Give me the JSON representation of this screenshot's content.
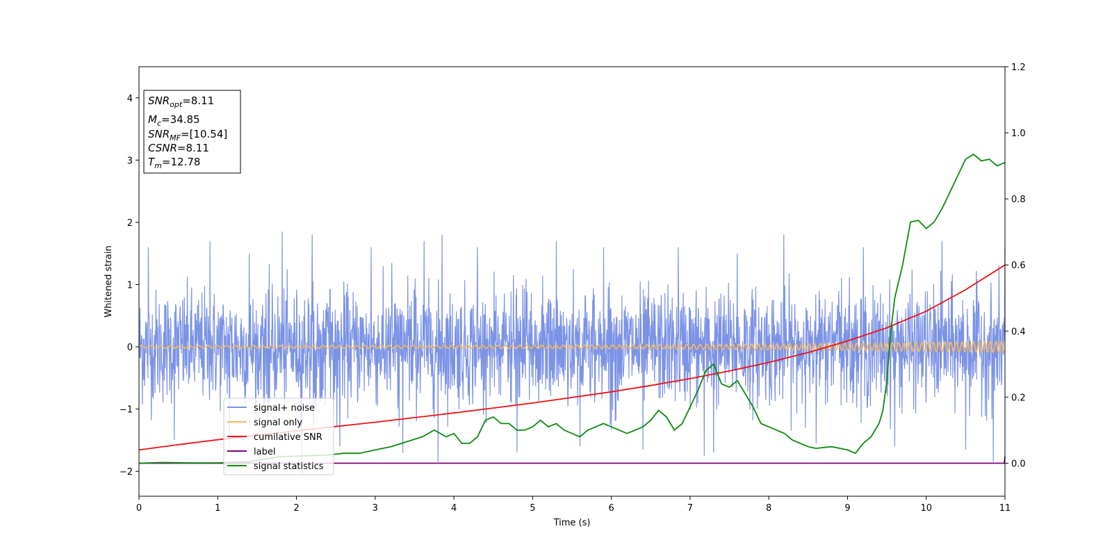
{
  "chart_data": {
    "type": "line",
    "xlabel": "Time (s)",
    "ylabel": "Whitened strain",
    "xlim": [
      0,
      11
    ],
    "ylim": [
      -2.4,
      4.5
    ],
    "y2lim": [
      -0.1,
      1.2
    ],
    "xticks": [
      "0",
      "1",
      "2",
      "3",
      "4",
      "5",
      "6",
      "7",
      "8",
      "9",
      "10",
      "11"
    ],
    "yticks": [
      "−2",
      "−1",
      "0",
      "1",
      "2",
      "3",
      "4"
    ],
    "y2ticks": [
      "0.0",
      "0.2",
      "0.4",
      "0.6",
      "0.8",
      "1.0",
      "1.2"
    ],
    "legend_position": "lower-left",
    "info_box": {
      "position": "top-left",
      "lines": [
        {
          "main": "SNR",
          "sub": "opt",
          "value": "=8.11"
        },
        {
          "main": "M",
          "sub": "c",
          "value": "=34.85"
        },
        {
          "main": "SNR",
          "sub": "MF",
          "value": "=[10.54]"
        },
        {
          "main": "CSNR",
          "sub": "",
          "value": "=8.11"
        },
        {
          "main": "T",
          "sub": "m",
          "value": "=12.78"
        }
      ]
    },
    "series": [
      {
        "name": "signal+ noise",
        "color": "#7b93e6",
        "axis": "left",
        "kind": "noise",
        "noise_sigma": 0.45,
        "spikes": [
          [
            0.12,
            1.6
          ],
          [
            0.45,
            -1.5
          ],
          [
            0.9,
            1.7
          ],
          [
            1.15,
            -1.6
          ],
          [
            1.4,
            1.5
          ],
          [
            1.82,
            1.85
          ],
          [
            2.07,
            -2.05
          ],
          [
            2.2,
            1.8
          ],
          [
            2.55,
            -1.6
          ],
          [
            2.95,
            1.6
          ],
          [
            3.35,
            -1.7
          ],
          [
            3.62,
            1.7
          ],
          [
            3.8,
            -1.85
          ],
          [
            3.85,
            1.8
          ],
          [
            4.3,
            1.6
          ],
          [
            4.8,
            -1.7
          ],
          [
            5.3,
            1.7
          ],
          [
            5.6,
            -1.6
          ],
          [
            5.9,
            1.6
          ],
          [
            6.4,
            -1.65
          ],
          [
            6.85,
            1.6
          ],
          [
            7.18,
            -1.75
          ],
          [
            7.3,
            -1.7
          ],
          [
            7.6,
            1.5
          ],
          [
            8.19,
            1.8
          ],
          [
            8.6,
            -1.55
          ],
          [
            9.2,
            1.6
          ],
          [
            9.6,
            -1.6
          ],
          [
            10.2,
            1.7
          ],
          [
            10.5,
            -1.65
          ],
          [
            10.85,
            -1.85
          ],
          [
            11.0,
            1.6
          ]
        ]
      },
      {
        "name": "signal only",
        "color": "#f5b762",
        "axis": "left",
        "kind": "chirp",
        "amplitude_start": 0.02,
        "amplitude_end": 0.09
      },
      {
        "name": "cumilative SNR",
        "color": "#ee1111",
        "axis": "right",
        "x": [
          0,
          0.5,
          1,
          1.5,
          2,
          2.5,
          3,
          3.5,
          4,
          4.5,
          5,
          5.5,
          6,
          6.5,
          7,
          7.5,
          8,
          8.5,
          9,
          9.5,
          10,
          10.5,
          11
        ],
        "y": [
          0.04,
          0.056,
          0.071,
          0.085,
          0.098,
          0.111,
          0.124,
          0.138,
          0.152,
          0.167,
          0.182,
          0.199,
          0.216,
          0.235,
          0.256,
          0.279,
          0.305,
          0.335,
          0.37,
          0.41,
          0.46,
          0.525,
          0.6
        ]
      },
      {
        "name": "label",
        "color": "#800080",
        "axis": "right",
        "x": [
          0,
          10.99,
          11
        ],
        "y": [
          0,
          0,
          0.02
        ]
      },
      {
        "name": "signal statistics",
        "color": "#0a8a0a",
        "axis": "right",
        "x": [
          0,
          0.3,
          0.6,
          1.0,
          1.4,
          1.8,
          2.1,
          2.4,
          2.6,
          2.8,
          3.0,
          3.2,
          3.4,
          3.6,
          3.75,
          3.9,
          4.0,
          4.1,
          4.2,
          4.3,
          4.4,
          4.5,
          4.6,
          4.7,
          4.8,
          4.9,
          5.0,
          5.1,
          5.2,
          5.3,
          5.4,
          5.5,
          5.6,
          5.7,
          5.8,
          5.9,
          6.0,
          6.1,
          6.2,
          6.3,
          6.4,
          6.5,
          6.6,
          6.7,
          6.8,
          6.9,
          7.0,
          7.1,
          7.2,
          7.3,
          7.4,
          7.5,
          7.6,
          7.7,
          7.8,
          7.9,
          8.0,
          8.1,
          8.2,
          8.3,
          8.4,
          8.5,
          8.6,
          8.8,
          9.0,
          9.1,
          9.2,
          9.3,
          9.4,
          9.45,
          9.5,
          9.55,
          9.6,
          9.7,
          9.8,
          9.9,
          10.0,
          10.1,
          10.2,
          10.3,
          10.4,
          10.5,
          10.6,
          10.7,
          10.8,
          10.9,
          11.0
        ],
        "y": [
          0.0,
          0.002,
          0.001,
          0.001,
          0.005,
          0.02,
          0.022,
          0.025,
          0.03,
          0.03,
          0.04,
          0.05,
          0.065,
          0.08,
          0.1,
          0.08,
          0.09,
          0.06,
          0.06,
          0.08,
          0.13,
          0.14,
          0.12,
          0.12,
          0.1,
          0.1,
          0.11,
          0.13,
          0.11,
          0.12,
          0.1,
          0.09,
          0.08,
          0.1,
          0.11,
          0.12,
          0.11,
          0.1,
          0.09,
          0.1,
          0.11,
          0.13,
          0.16,
          0.14,
          0.1,
          0.12,
          0.17,
          0.22,
          0.28,
          0.3,
          0.24,
          0.23,
          0.25,
          0.21,
          0.17,
          0.12,
          0.11,
          0.1,
          0.09,
          0.07,
          0.06,
          0.05,
          0.045,
          0.05,
          0.04,
          0.03,
          0.06,
          0.08,
          0.12,
          0.16,
          0.25,
          0.4,
          0.5,
          0.6,
          0.73,
          0.735,
          0.71,
          0.73,
          0.77,
          0.82,
          0.87,
          0.92,
          0.935,
          0.915,
          0.92,
          0.9,
          0.91
        ]
      }
    ]
  }
}
